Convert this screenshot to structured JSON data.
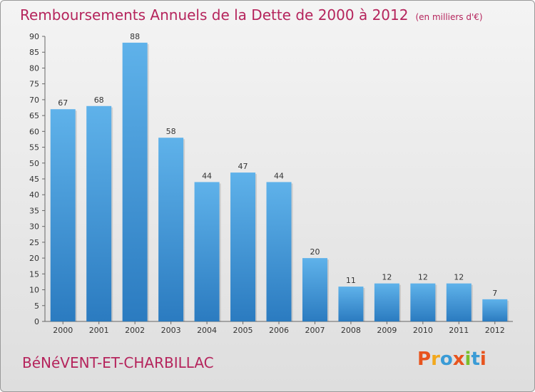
{
  "header": {
    "title": "Remboursements Annuels de la Dette de 2000 à 2012",
    "unit": "(en milliers d'€)"
  },
  "commune": "BéNéVENT-ET-CHARBILLAC",
  "logo": {
    "text": "Proxiti",
    "colors": [
      "#e8541e",
      "#f2a81d",
      "#3a9bd6",
      "#e8541e",
      "#7bbf2a",
      "#3a9bd6",
      "#e8541e"
    ]
  },
  "chart_data": {
    "type": "bar",
    "categories": [
      "2000",
      "2001",
      "2002",
      "2003",
      "2004",
      "2005",
      "2006",
      "2007",
      "2008",
      "2009",
      "2010",
      "2011",
      "2012"
    ],
    "values": [
      67,
      68,
      88,
      58,
      44,
      47,
      44,
      20,
      11,
      12,
      12,
      12,
      7
    ],
    "ylim": [
      0,
      90
    ],
    "yticks": [
      0,
      5,
      10,
      15,
      20,
      25,
      30,
      35,
      40,
      45,
      50,
      55,
      60,
      65,
      70,
      75,
      80,
      85,
      90
    ],
    "grid": false,
    "bar_color": "#3a8fd8"
  }
}
